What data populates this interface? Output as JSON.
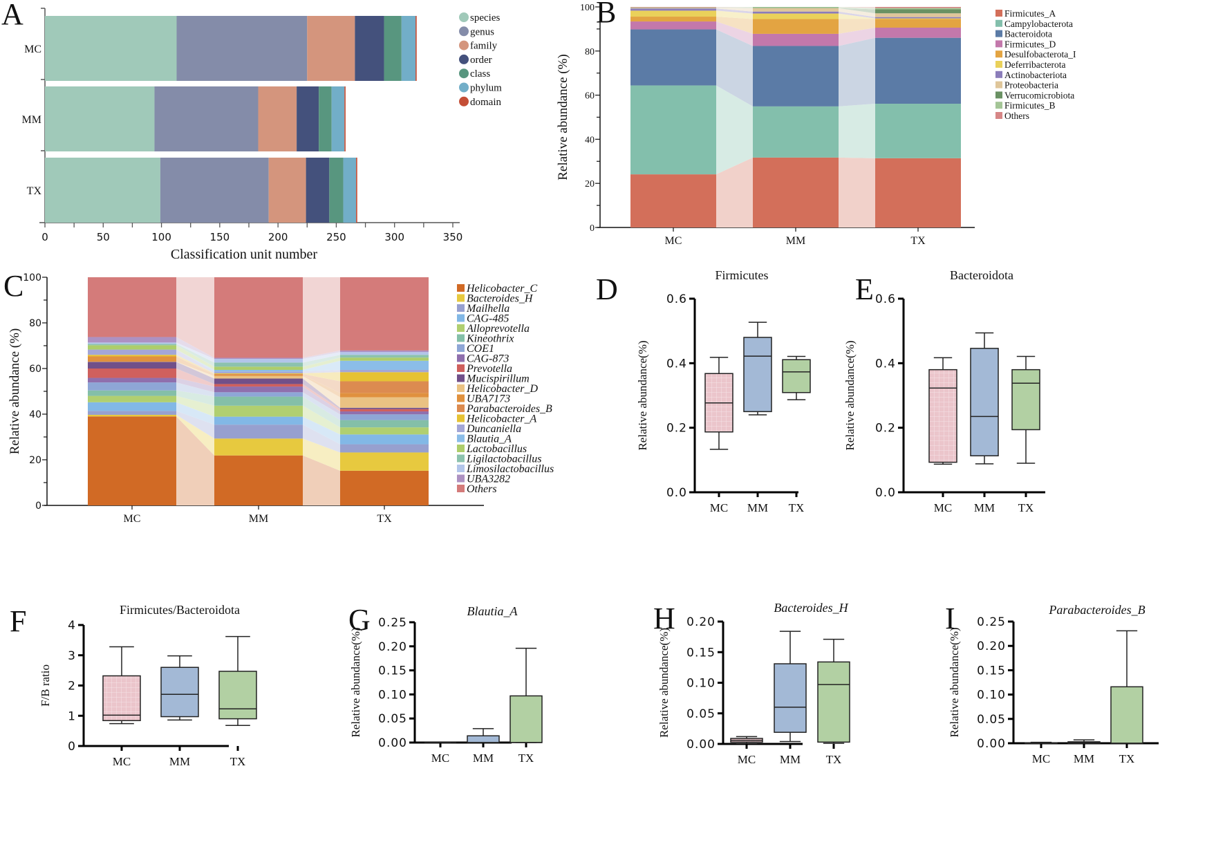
{
  "groups": [
    "MC",
    "MM",
    "TX"
  ],
  "chart_data": [
    {
      "panel": "A",
      "type": "bar",
      "orientation": "horizontal-stacked",
      "title": "",
      "xlabel": "Classification unit number",
      "ylabel": "",
      "xlim": [
        0,
        350
      ],
      "xticks": [
        0,
        50,
        100,
        150,
        200,
        250,
        300,
        350
      ],
      "categories": [
        "MC",
        "MM",
        "TX"
      ],
      "legend": "top-right",
      "series": [
        {
          "name": "species",
          "color": "#a0c9b9",
          "values": [
            113,
            94,
            99
          ]
        },
        {
          "name": "genus",
          "color": "#848ca9",
          "values": [
            112,
            89,
            93
          ]
        },
        {
          "name": "family",
          "color": "#d4957d",
          "values": [
            41,
            33,
            32
          ]
        },
        {
          "name": "order",
          "color": "#44517c",
          "values": [
            25,
            19,
            20
          ]
        },
        {
          "name": "class",
          "color": "#58967f",
          "values": [
            15,
            11,
            12
          ]
        },
        {
          "name": "phylum",
          "color": "#72aec8",
          "values": [
            12,
            11,
            11
          ]
        },
        {
          "name": "domain",
          "color": "#c44e36",
          "values": [
            1,
            1,
            1
          ]
        }
      ]
    },
    {
      "panel": "B",
      "type": "bar",
      "orientation": "vertical-stacked-alluvial",
      "title": "",
      "xlabel": "",
      "ylabel": "Relative abundance (%)",
      "ylim": [
        0,
        100
      ],
      "yticks": [
        0,
        20,
        40,
        60,
        80,
        100
      ],
      "categories": [
        "MC",
        "MM",
        "TX"
      ],
      "legend": "right",
      "series": [
        {
          "name": "Firmicutes_A",
          "color": "#d36f5a",
          "values": [
            24.1,
            31.7,
            31.4
          ]
        },
        {
          "name": "Campylobacterota",
          "color": "#83bfac",
          "values": [
            40.3,
            23.2,
            24.7
          ]
        },
        {
          "name": "Bacteroidota",
          "color": "#5b7ba6",
          "values": [
            25.4,
            27.4,
            29.9
          ]
        },
        {
          "name": "Firmicutes_D",
          "color": "#c378ab",
          "values": [
            3.6,
            5.5,
            4.6
          ]
        },
        {
          "name": "Desulfobacterota_I",
          "color": "#e3a442",
          "values": [
            2.2,
            6.7,
            3.9
          ]
        },
        {
          "name": "Deferribacterota",
          "color": "#ead15a",
          "values": [
            2.7,
            2.5,
            0.3
          ]
        },
        {
          "name": "Actinobacteriota",
          "color": "#8b7dba",
          "values": [
            1.0,
            0.9,
            0.6
          ]
        },
        {
          "name": "Proteobacteria",
          "color": "#dfc69a",
          "values": [
            0.3,
            1.5,
            1.7
          ]
        },
        {
          "name": "Verrucomicrobiota",
          "color": "#6a9163",
          "values": [
            0.1,
            0.1,
            1.8
          ]
        },
        {
          "name": "Firmicutes_B",
          "color": "#a4c596",
          "values": [
            0.1,
            0.5,
            0.6
          ]
        },
        {
          "name": "Others",
          "color": "#d68686",
          "values": [
            0.2,
            0.0,
            0.5
          ]
        }
      ]
    },
    {
      "panel": "C",
      "type": "bar",
      "orientation": "vertical-stacked-alluvial",
      "title": "",
      "xlabel": "",
      "ylabel": "Relative abundance (%)",
      "ylim": [
        0,
        100
      ],
      "yticks": [
        0,
        20,
        40,
        60,
        80,
        100
      ],
      "categories": [
        "MC",
        "MM",
        "TX"
      ],
      "legend": "right",
      "series": [
        {
          "name": "Helicobacter_C",
          "color": "#d16a25",
          "values": [
            39.0,
            21.9,
            15.2
          ]
        },
        {
          "name": "Bacteroides_H",
          "color": "#e7c93f",
          "values": [
            0.7,
            7.4,
            8.0
          ]
        },
        {
          "name": "Mailhella",
          "color": "#97a0cf",
          "values": [
            1.7,
            6.1,
            3.6
          ]
        },
        {
          "name": "CAG-485",
          "color": "#82b8e6",
          "values": [
            3.8,
            3.5,
            4.3
          ]
        },
        {
          "name": "Alloprevotella",
          "color": "#b0cf70",
          "values": [
            2.8,
            4.8,
            3.1
          ]
        },
        {
          "name": "Kineothrix",
          "color": "#84bfa8",
          "values": [
            2.4,
            4.0,
            3.2
          ]
        },
        {
          "name": "COE1",
          "color": "#8ea6d6",
          "values": [
            3.5,
            1.9,
            2.5
          ]
        },
        {
          "name": "CAG-873",
          "color": "#8f6fad",
          "values": [
            2.0,
            2.5,
            1.3
          ]
        },
        {
          "name": "Prevotella",
          "color": "#cf605d",
          "values": [
            4.1,
            1.1,
            1.0
          ]
        },
        {
          "name": "Mucispirillum",
          "color": "#715089",
          "values": [
            2.9,
            2.4,
            0.6
          ]
        },
        {
          "name": "Helicobacter_D",
          "color": "#eac283",
          "values": [
            0.1,
            1.1,
            4.6
          ]
        },
        {
          "name": "UBA7173",
          "color": "#e0913e",
          "values": [
            2.3,
            0.5,
            1.9
          ]
        },
        {
          "name": "Parabacteroides_B",
          "color": "#dc8b50",
          "values": [
            0.0,
            0.4,
            5.1
          ]
        },
        {
          "name": "Helicobacter_A",
          "color": "#e6c234",
          "values": [
            0.7,
            0.3,
            4.0
          ]
        },
        {
          "name": "Duncaniella",
          "color": "#a3a6d6",
          "values": [
            2.3,
            0.8,
            1.0
          ]
        },
        {
          "name": "Blautia_A",
          "color": "#8bbde8",
          "values": [
            0.0,
            0.7,
            4.0
          ]
        },
        {
          "name": "Lactobacillus",
          "color": "#adcd6b",
          "values": [
            1.9,
            1.4,
            1.4
          ]
        },
        {
          "name": "Ligilactobacillus",
          "color": "#8cc2ae",
          "values": [
            0.6,
            1.8,
            1.2
          ]
        },
        {
          "name": "Limosilactobacillus",
          "color": "#b2c5ea",
          "values": [
            0.6,
            1.6,
            1.2
          ]
        },
        {
          "name": "UBA3282",
          "color": "#ad91c2",
          "values": [
            2.4,
            0.5,
            0.7
          ]
        },
        {
          "name": "Others",
          "color": "#d47b7a",
          "values": [
            26.2,
            35.3,
            32.1
          ]
        }
      ]
    },
    {
      "panel": "D",
      "type": "box",
      "title": "Firmicutes",
      "title_italic": false,
      "ylabel": "Relative abundance(%)",
      "ylim": [
        0,
        0.6
      ],
      "yticks": [
        "0.0",
        "0.2",
        "0.4",
        "0.6"
      ],
      "categories": [
        "MC",
        "MM",
        "TX"
      ],
      "boxes": [
        {
          "group": "MC",
          "min": 0.133,
          "q1": 0.187,
          "median": 0.277,
          "q3": 0.368,
          "max": 0.418
        },
        {
          "group": "MM",
          "min": 0.24,
          "q1": 0.25,
          "median": 0.422,
          "q3": 0.48,
          "max": 0.527
        },
        {
          "group": "TX",
          "min": 0.287,
          "q1": 0.309,
          "median": 0.373,
          "q3": 0.411,
          "max": 0.421
        }
      ]
    },
    {
      "panel": "E",
      "type": "box",
      "title": "Bacteroidota",
      "title_italic": false,
      "ylabel": "Relative abundance(%)",
      "ylim": [
        0,
        0.6
      ],
      "yticks": [
        "0.0",
        "0.2",
        "0.4",
        "0.6"
      ],
      "categories": [
        "MC",
        "MM",
        "TX"
      ],
      "boxes": [
        {
          "group": "MC",
          "min": 0.087,
          "q1": 0.093,
          "median": 0.323,
          "q3": 0.38,
          "max": 0.417
        },
        {
          "group": "MM",
          "min": 0.088,
          "q1": 0.113,
          "median": 0.235,
          "q3": 0.446,
          "max": 0.494
        },
        {
          "group": "TX",
          "min": 0.09,
          "q1": 0.194,
          "median": 0.338,
          "q3": 0.38,
          "max": 0.421
        }
      ]
    },
    {
      "panel": "F",
      "type": "box",
      "title": "Firmicutes/Bacteroidota",
      "title_italic": false,
      "ylabel": "F/B ratio",
      "ylim": [
        0,
        4
      ],
      "yticks": [
        "0",
        "1",
        "2",
        "3",
        "4"
      ],
      "categories": [
        "MC",
        "MM",
        "TX"
      ],
      "boxes": [
        {
          "group": "MC",
          "min": 0.74,
          "q1": 0.84,
          "median": 1.02,
          "q3": 2.32,
          "max": 3.28
        },
        {
          "group": "MM",
          "min": 0.86,
          "q1": 0.97,
          "median": 1.71,
          "q3": 2.6,
          "max": 2.98
        },
        {
          "group": "TX",
          "min": 0.68,
          "q1": 0.9,
          "median": 1.23,
          "q3": 2.47,
          "max": 3.62
        }
      ]
    },
    {
      "panel": "G",
      "type": "box",
      "title": "Blautia_A",
      "title_italic": true,
      "ylabel": "Relative abundance(%)",
      "ylim": [
        0,
        0.25
      ],
      "yticks": [
        "0.00",
        "0.05",
        "0.10",
        "0.15",
        "0.20",
        "0.25"
      ],
      "categories": [
        "MC",
        "MM",
        "TX"
      ],
      "boxes": [
        {
          "group": "MC",
          "min": 0.0,
          "q1": 0.0,
          "median": 0.0,
          "q3": 0.0,
          "max": 0.0
        },
        {
          "group": "MM",
          "min": 0.0,
          "q1": 0.0,
          "median": 0.0,
          "q3": 0.014,
          "max": 0.029
        },
        {
          "group": "TX",
          "min": 0.0,
          "q1": 0.0,
          "median": 0.0,
          "q3": 0.097,
          "max": 0.196
        }
      ]
    },
    {
      "panel": "H",
      "type": "box",
      "title": "Bacteroides_H",
      "title_italic": true,
      "ylabel": "Relative abundance(%)",
      "ylim": [
        0,
        0.2
      ],
      "yticks": [
        "0.00",
        "0.05",
        "0.10",
        "0.15",
        "0.20"
      ],
      "categories": [
        "MC",
        "MM",
        "TX"
      ],
      "boxes": [
        {
          "group": "MC",
          "min": 0.001,
          "q1": 0.003,
          "median": 0.006,
          "q3": 0.009,
          "max": 0.012
        },
        {
          "group": "MM",
          "min": 0.004,
          "q1": 0.019,
          "median": 0.06,
          "q3": 0.131,
          "max": 0.184
        },
        {
          "group": "TX",
          "min": 0.001,
          "q1": 0.003,
          "median": 0.097,
          "q3": 0.134,
          "max": 0.171
        }
      ]
    },
    {
      "panel": "I",
      "type": "box",
      "title": "Parabacteroides_B",
      "title_italic": true,
      "ylabel": "Relative abundance(%)",
      "ylim": [
        0,
        0.25
      ],
      "yticks": [
        "0.00",
        "0.05",
        "0.10",
        "0.15",
        "0.20",
        "0.25"
      ],
      "categories": [
        "MC",
        "MM",
        "TX"
      ],
      "boxes": [
        {
          "group": "MC",
          "min": 0.0,
          "q1": 0.0,
          "median": 0.0,
          "q3": 0.001,
          "max": 0.002
        },
        {
          "group": "MM",
          "min": 0.0,
          "q1": 0.0,
          "median": 0.001,
          "q3": 0.003,
          "max": 0.007
        },
        {
          "group": "TX",
          "min": 0.0,
          "q1": 0.0,
          "median": 0.0,
          "q3": 0.116,
          "max": 0.231
        }
      ]
    }
  ],
  "box_colors": {
    "MC": "#ebc5cb",
    "MM": "#a3b9d6",
    "TX": "#b2d0a3"
  }
}
